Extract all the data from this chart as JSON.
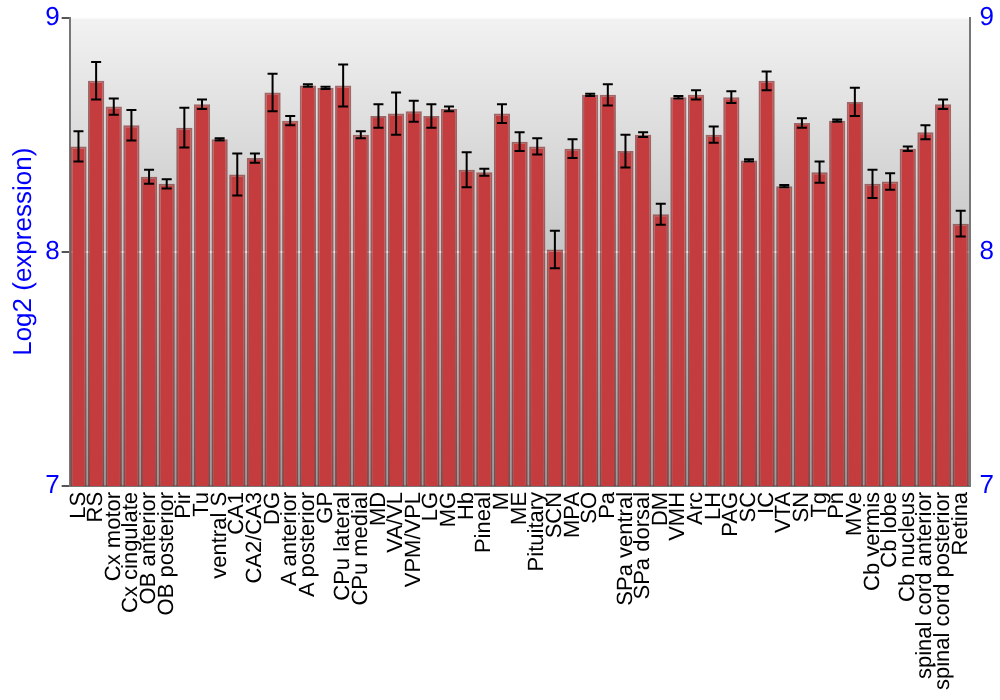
{
  "chart_data": {
    "type": "bar",
    "ylabel": "Log2 (expression)",
    "categories": [
      "LS",
      "RS",
      "Cx motor",
      "Cx cingulate",
      "OB anterior",
      "OB posterior",
      "Pir",
      "Tu",
      "ventral S",
      "CA1",
      "CA2/CA3",
      "DG",
      "A anterior",
      "A posterior",
      "GP",
      "CPu lateral",
      "CPu medial",
      "MD",
      "VA/VL",
      "VPM/VPL",
      "LG",
      "MG",
      "Hb",
      "Pineal",
      "M",
      "ME",
      "Pituitary",
      "SCN",
      "MPA",
      "SO",
      "Pa",
      "SPa ventral",
      "SPa dorsal",
      "DM",
      "VMH",
      "Arc",
      "LH",
      "PAG",
      "SC",
      "IC",
      "VTA",
      "SN",
      "Tg",
      "Pn",
      "MVe",
      "Cb vermis",
      "Cb lobe",
      "Cb nucleus",
      "spinal cord anterior",
      "spinal cord posterior",
      "Retina"
    ],
    "values": [
      8.45,
      8.73,
      8.62,
      8.54,
      8.32,
      8.29,
      8.53,
      8.63,
      8.48,
      8.33,
      8.4,
      8.68,
      8.56,
      8.71,
      8.7,
      8.71,
      8.5,
      8.58,
      8.59,
      8.6,
      8.58,
      8.61,
      8.35,
      8.34,
      8.59,
      8.47,
      8.45,
      8.01,
      8.44,
      8.67,
      8.67,
      8.43,
      8.5,
      8.16,
      8.66,
      8.67,
      8.5,
      8.66,
      8.39,
      8.73,
      8.28,
      8.55,
      8.34,
      8.56,
      8.64,
      8.29,
      8.3,
      8.44,
      8.51,
      8.63,
      8.12
    ],
    "errors": [
      0.065,
      0.08,
      0.035,
      0.065,
      0.03,
      0.02,
      0.085,
      0.02,
      0.005,
      0.09,
      0.02,
      0.08,
      0.02,
      0.005,
      0.005,
      0.09,
      0.015,
      0.05,
      0.09,
      0.045,
      0.05,
      0.01,
      0.075,
      0.015,
      0.04,
      0.04,
      0.035,
      0.08,
      0.04,
      0.005,
      0.045,
      0.07,
      0.01,
      0.045,
      0.005,
      0.02,
      0.035,
      0.025,
      0.005,
      0.04,
      0.005,
      0.02,
      0.045,
      0.005,
      0.06,
      0.06,
      0.035,
      0.01,
      0.03,
      0.02,
      0.055
    ],
    "color": "#c43c3e",
    "ylim": [
      7,
      9
    ],
    "yticks": [
      7,
      8,
      9
    ],
    "y2lim": [
      7,
      9
    ],
    "y2ticks": [
      7,
      8,
      9
    ],
    "grid": "y",
    "legend": false
  }
}
